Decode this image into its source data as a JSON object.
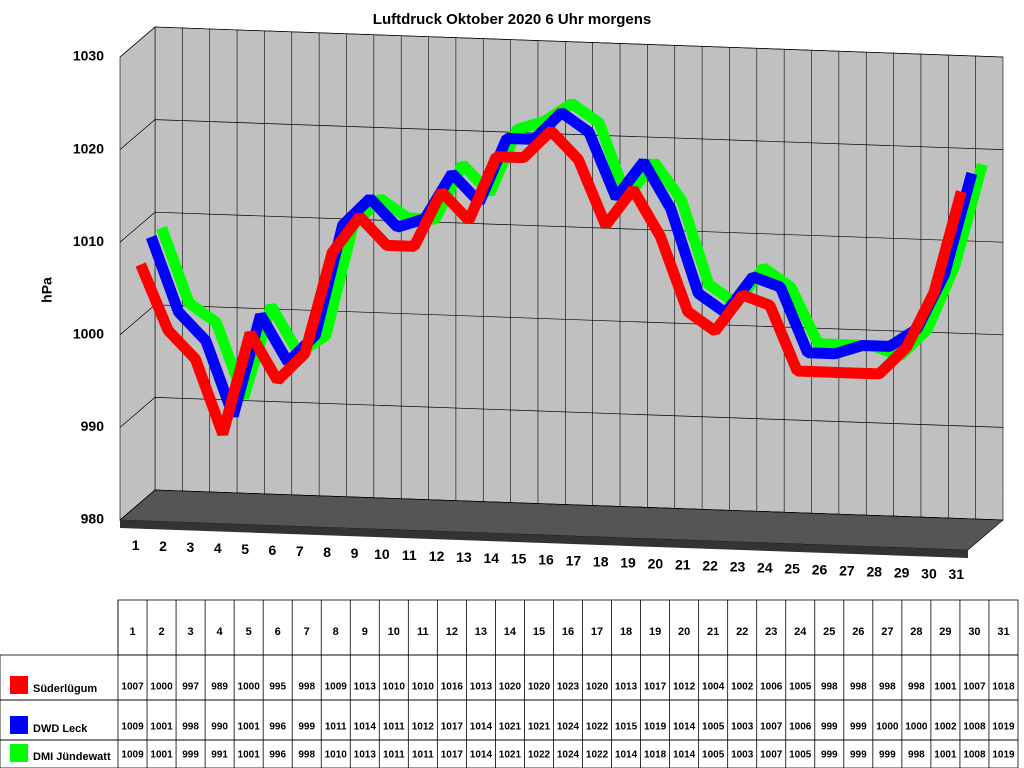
{
  "chart_data": {
    "type": "line3d",
    "title": "Luftdruck Oktober 2020 6 Uhr morgens",
    "y_label": "hPa",
    "categories": [
      "1",
      "2",
      "3",
      "4",
      "5",
      "6",
      "7",
      "8",
      "9",
      "10",
      "11",
      "12",
      "13",
      "14",
      "15",
      "16",
      "17",
      "18",
      "19",
      "20",
      "21",
      "22",
      "23",
      "24",
      "25",
      "26",
      "27",
      "28",
      "29",
      "30",
      "31"
    ],
    "series": [
      {
        "name": "Süderlügum",
        "color": "#ff0000",
        "values": [
          1007,
          1000,
          997,
          989,
          1000,
          995,
          998,
          1009,
          1013,
          1010,
          1010,
          1016,
          1013,
          1020,
          1020,
          1023,
          1020,
          1013,
          1017,
          1012,
          1004,
          1002,
          1006,
          1005,
          998,
          998,
          998,
          998,
          1001,
          1007,
          1018
        ]
      },
      {
        "name": "DWD Leck",
        "color": "#0000ff",
        "values": [
          1009,
          1001,
          998,
          990,
          1001,
          996,
          999,
          1011,
          1014,
          1011,
          1012,
          1017,
          1014,
          1021,
          1021,
          1024,
          1022,
          1015,
          1019,
          1014,
          1005,
          1003,
          1007,
          1006,
          999,
          999,
          1000,
          1000,
          1002,
          1008,
          1019
        ]
      },
      {
        "name": "DMI Jündewatt",
        "color": "#00ff00",
        "values": [
          1009,
          1001,
          999,
          991,
          1001,
          996,
          998,
          1010,
          1013,
          1011,
          1011,
          1017,
          1014,
          1021,
          1022,
          1024,
          1022,
          1014,
          1018,
          1014,
          1005,
          1003,
          1007,
          1005,
          999,
          999,
          999,
          998,
          1001,
          1008,
          1019
        ]
      }
    ],
    "ylim": [
      980,
      1030
    ],
    "yticks": [
      980,
      990,
      1000,
      1010,
      1020,
      1030
    ],
    "grid": true
  }
}
